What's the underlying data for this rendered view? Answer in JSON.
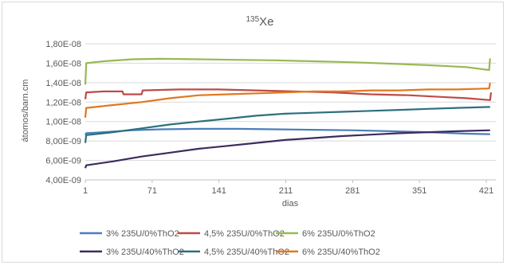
{
  "chart_data": {
    "type": "line",
    "title_sup": "135",
    "title_main": "Xe",
    "xlabel": "dias",
    "ylabel": "átomos/barn.cm",
    "xlim": [
      1,
      431
    ],
    "ylim": [
      4e-09,
      1.8e-08
    ],
    "x_ticks": [
      1,
      71,
      141,
      211,
      281,
      351,
      421
    ],
    "x_tick_labels": [
      "1",
      "71",
      "141",
      "211",
      "281",
      "351",
      "421"
    ],
    "y_ticks": [
      4e-09,
      6e-09,
      8e-09,
      1e-08,
      1.2e-08,
      1.4e-08,
      1.6e-08,
      1.8e-08
    ],
    "y_tick_labels": [
      "4,00E-09",
      "6,00E-09",
      "8,00E-09",
      "1,00E-08",
      "1,20E-08",
      "1,40E-08",
      "1,60E-08",
      "1,80E-08"
    ],
    "grid": true,
    "legend_position": "bottom",
    "series": [
      {
        "name": "3% 235U/0%ThO2",
        "color": "#4a7ebb",
        "x": [
          1,
          2,
          20,
          50,
          80,
          120,
          160,
          200,
          240,
          280,
          320,
          360,
          400,
          425
        ],
        "values": [
          8.6e-09,
          8.8e-09,
          8.9e-09,
          9.1e-09,
          9.2e-09,
          9.25e-09,
          9.25e-09,
          9.2e-09,
          9.15e-09,
          9.1e-09,
          9e-09,
          8.9e-09,
          8.75e-09,
          8.7e-09
        ]
      },
      {
        "name": "4,5% 235U/0%ThO2",
        "color": "#be4b48",
        "x": [
          1,
          2,
          20,
          40,
          41,
          60,
          61,
          100,
          140,
          180,
          220,
          260,
          300,
          340,
          380,
          400,
          425,
          426
        ],
        "values": [
          1.23e-08,
          1.3e-08,
          1.31e-08,
          1.31e-08,
          1.28e-08,
          1.28e-08,
          1.32e-08,
          1.33e-08,
          1.33e-08,
          1.32e-08,
          1.31e-08,
          1.3e-08,
          1.28e-08,
          1.27e-08,
          1.25e-08,
          1.24e-08,
          1.22e-08,
          1.3e-08
        ]
      },
      {
        "name": "6% 235U/0%ThO2",
        "color": "#98b954",
        "x": [
          1,
          2,
          20,
          50,
          80,
          120,
          160,
          200,
          240,
          280,
          320,
          360,
          400,
          424,
          425
        ],
        "values": [
          1.38e-08,
          1.6e-08,
          1.62e-08,
          1.64e-08,
          1.645e-08,
          1.64e-08,
          1.635e-08,
          1.63e-08,
          1.62e-08,
          1.61e-08,
          1.595e-08,
          1.58e-08,
          1.56e-08,
          1.53e-08,
          1.65e-08
        ]
      },
      {
        "name": "3% 235U/40%ThO2",
        "color": "#3c2b5e",
        "x": [
          1,
          2,
          30,
          60,
          90,
          120,
          150,
          180,
          210,
          240,
          270,
          300,
          330,
          360,
          390,
          425
        ],
        "values": [
          5.2e-09,
          5.5e-09,
          5.9e-09,
          6.4e-09,
          6.8e-09,
          7.2e-09,
          7.5e-09,
          7.8e-09,
          8.1e-09,
          8.3e-09,
          8.5e-09,
          8.65e-09,
          8.8e-09,
          8.9e-09,
          9e-09,
          9.1e-09
        ]
      },
      {
        "name": "4,5% 235U/40%ThO2",
        "color": "#2e6f7e",
        "x": [
          1,
          2,
          30,
          60,
          90,
          120,
          150,
          180,
          210,
          240,
          270,
          300,
          330,
          360,
          390,
          425
        ],
        "values": [
          7.8e-09,
          8.6e-09,
          8.9e-09,
          9.3e-09,
          9.7e-09,
          1e-08,
          1.03e-08,
          1.06e-08,
          1.08e-08,
          1.09e-08,
          1.1e-08,
          1.11e-08,
          1.12e-08,
          1.13e-08,
          1.14e-08,
          1.15e-08
        ]
      },
      {
        "name": "6% 235U/40%ThO2",
        "color": "#e0781e",
        "x": [
          1,
          2,
          30,
          60,
          90,
          120,
          150,
          180,
          210,
          240,
          270,
          300,
          330,
          360,
          390,
          424,
          425
        ],
        "values": [
          1.04e-08,
          1.14e-08,
          1.17e-08,
          1.2e-08,
          1.24e-08,
          1.27e-08,
          1.28e-08,
          1.29e-08,
          1.3e-08,
          1.31e-08,
          1.31e-08,
          1.32e-08,
          1.32e-08,
          1.33e-08,
          1.33e-08,
          1.34e-08,
          1.4e-08
        ]
      }
    ]
  }
}
